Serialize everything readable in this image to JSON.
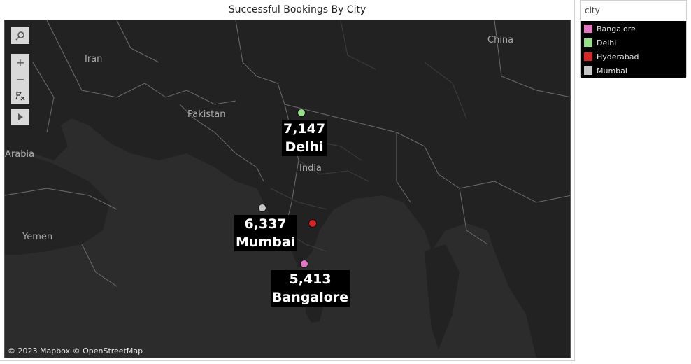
{
  "title": "Successful Bookings By City",
  "legend": {
    "title": "city",
    "items": [
      {
        "label": "Bangalore",
        "color": "#e377c2"
      },
      {
        "label": "Delhi",
        "color": "#98df8a"
      },
      {
        "label": "Hyderabad",
        "color": "#d62728"
      },
      {
        "label": "Mumbai",
        "color": "#c7c7c7"
      }
    ]
  },
  "map": {
    "places": [
      "Iran",
      "Pakistan",
      "China",
      "India",
      "Arabia",
      "Yemen"
    ],
    "attribution": "© 2023 Mapbox © OpenStreetMap",
    "markers": [
      {
        "city": "Delhi",
        "value": "7,147",
        "color": "#98df8a"
      },
      {
        "city": "Mumbai",
        "value": "6,337",
        "color": "#c7c7c7"
      },
      {
        "city": "Hyderabad",
        "value": "",
        "color": "#d62728"
      },
      {
        "city": "Bangalore",
        "value": "5,413",
        "color": "#e377c2"
      }
    ]
  },
  "toolbar": {
    "search_icon": "search-icon",
    "zoom_in": "+",
    "zoom_out": "−",
    "reset_icon": "pin-reset-icon",
    "expand_icon": "play-arrow-icon"
  }
}
